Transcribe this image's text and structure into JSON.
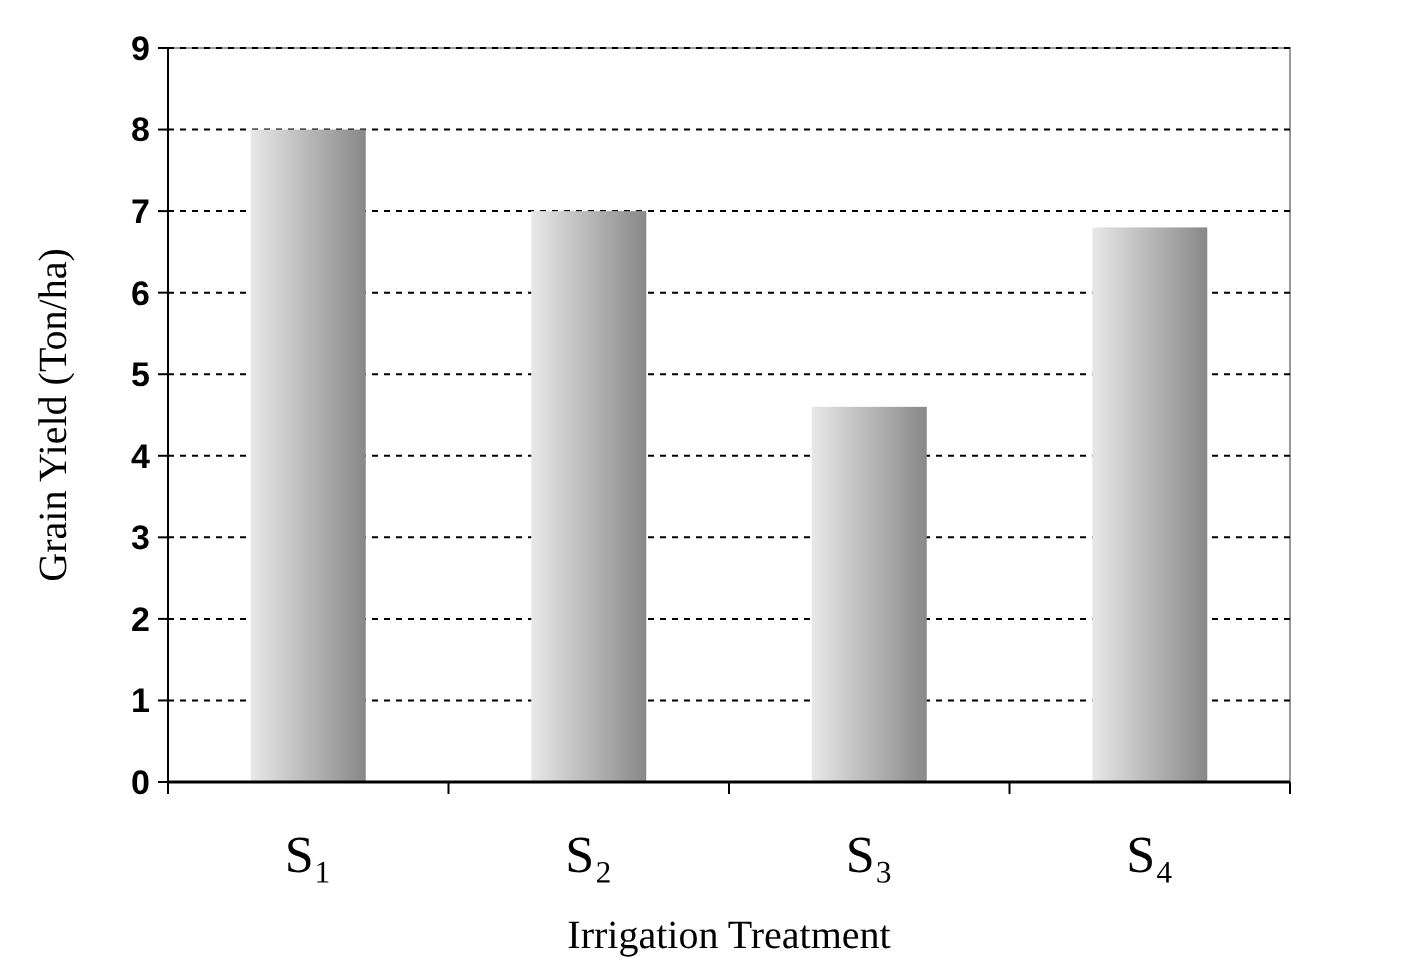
{
  "chart_data": {
    "type": "bar",
    "xlabel": "Irrigation Treatment",
    "ylabel": "Grain Yield (Ton/ha)",
    "categories": [
      "S₁",
      "S₂",
      "S₃",
      "S₄"
    ],
    "values": [
      8,
      7,
      4.6,
      6.8
    ],
    "color": "#a8a8a8",
    "ylim": [
      0,
      9
    ],
    "yticks": [
      0,
      1,
      2,
      3,
      4,
      5,
      6,
      7,
      8,
      9
    ],
    "grid": "y"
  }
}
